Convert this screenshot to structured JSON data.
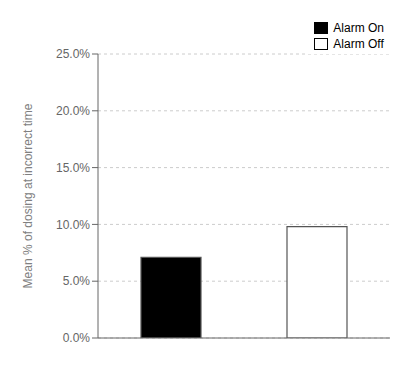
{
  "chart_data": {
    "type": "bar",
    "ylabel": "Mean % of dosing at incorrect time",
    "categories": [
      "Alarm On",
      "Alarm Off"
    ],
    "values": [
      7.1,
      9.8
    ],
    "colors": [
      "#000000",
      "#ffffff"
    ],
    "ylim": [
      0,
      25
    ],
    "yticks": [
      {
        "value": 0,
        "label": "0.0%"
      },
      {
        "value": 5,
        "label": "5.0%"
      },
      {
        "value": 10,
        "label": "10.0%"
      },
      {
        "value": 15,
        "label": "15.0%"
      },
      {
        "value": 20,
        "label": "20.0%"
      },
      {
        "value": 25,
        "label": "25.0%"
      }
    ],
    "grid": true,
    "legend": "upper right",
    "tick_labels": "y"
  }
}
